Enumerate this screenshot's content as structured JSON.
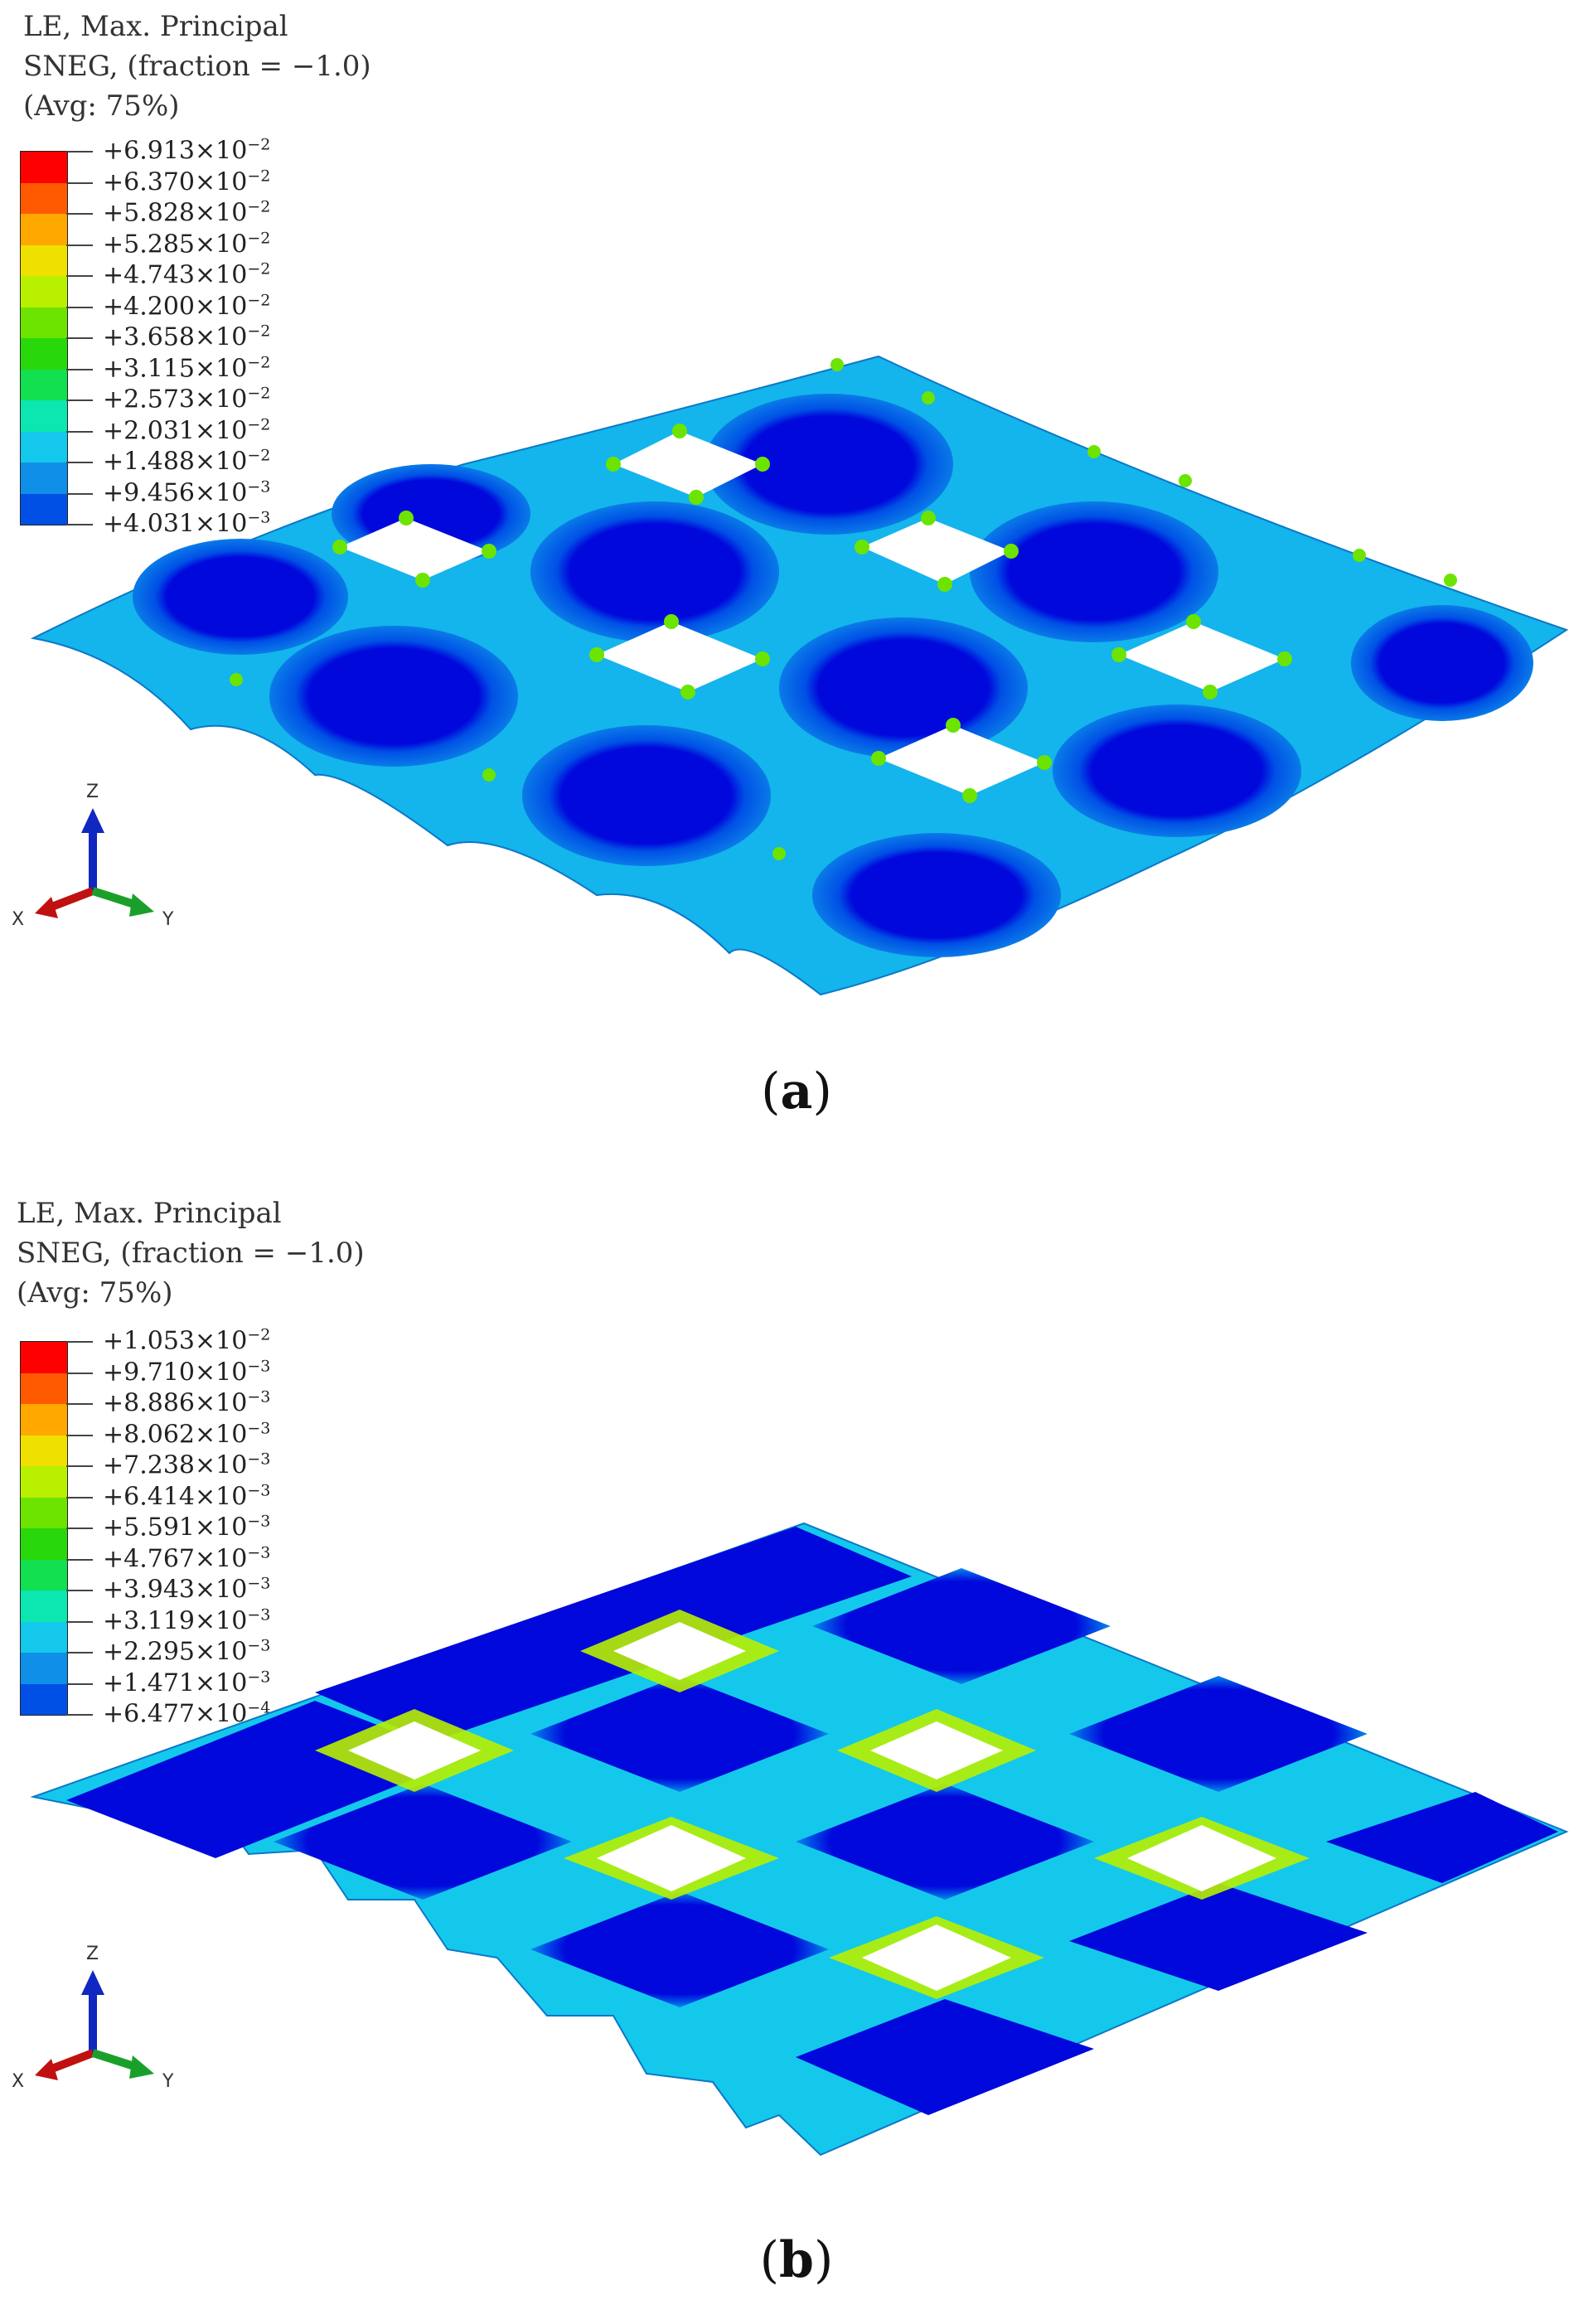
{
  "panels": [
    {
      "id": "a",
      "caption_letter": "a",
      "legend": {
        "title_lines": [
          "LE, Max. Principal",
          "SNEG, (fraction = −1.0)",
          "(Avg: 75%)"
        ],
        "labels": [
          {
            "mantissa": "+6.913",
            "exp": "−2"
          },
          {
            "mantissa": "+6.370",
            "exp": "−2"
          },
          {
            "mantissa": "+5.828",
            "exp": "−2"
          },
          {
            "mantissa": "+5.285",
            "exp": "−2"
          },
          {
            "mantissa": "+4.743",
            "exp": "−2"
          },
          {
            "mantissa": "+4.200",
            "exp": "−2"
          },
          {
            "mantissa": "+3.658",
            "exp": "−2"
          },
          {
            "mantissa": "+3.115",
            "exp": "−2"
          },
          {
            "mantissa": "+2.573",
            "exp": "−2"
          },
          {
            "mantissa": "+2.031",
            "exp": "−2"
          },
          {
            "mantissa": "+1.488",
            "exp": "−2"
          },
          {
            "mantissa": "+9.456",
            "exp": "−3"
          },
          {
            "mantissa": "+4.031",
            "exp": "−3"
          }
        ]
      },
      "triad": {
        "z": "Z",
        "x": "X",
        "y": "Y"
      }
    },
    {
      "id": "b",
      "caption_letter": "b",
      "legend": {
        "title_lines": [
          "LE, Max. Principal",
          "SNEG, (fraction = −1.0)",
          "(Avg: 75%)"
        ],
        "labels": [
          {
            "mantissa": "+1.053",
            "exp": "−2"
          },
          {
            "mantissa": "+9.710",
            "exp": "−3"
          },
          {
            "mantissa": "+8.886",
            "exp": "−3"
          },
          {
            "mantissa": "+8.062",
            "exp": "−3"
          },
          {
            "mantissa": "+7.238",
            "exp": "−3"
          },
          {
            "mantissa": "+6.414",
            "exp": "−3"
          },
          {
            "mantissa": "+5.591",
            "exp": "−3"
          },
          {
            "mantissa": "+4.767",
            "exp": "−3"
          },
          {
            "mantissa": "+3.943",
            "exp": "−3"
          },
          {
            "mantissa": "+3.119",
            "exp": "−3"
          },
          {
            "mantissa": "+2.295",
            "exp": "−3"
          },
          {
            "mantissa": "+1.471",
            "exp": "−3"
          },
          {
            "mantissa": "+6.477",
            "exp": "−4"
          }
        ]
      },
      "triad": {
        "z": "Z",
        "x": "X",
        "y": "Y"
      }
    }
  ],
  "colors": {
    "contour_scale": [
      "#ff0000",
      "#ff5a00",
      "#ffa800",
      "#f0e000",
      "#b8f000",
      "#6ce400",
      "#28d80a",
      "#12e050",
      "#0ce6b0",
      "#14c8ec",
      "#0f8fe8",
      "#0050e6",
      "#0008dc"
    ],
    "axis_x": "#c01010",
    "axis_y": "#1aa02a",
    "axis_z": "#1028c0"
  }
}
